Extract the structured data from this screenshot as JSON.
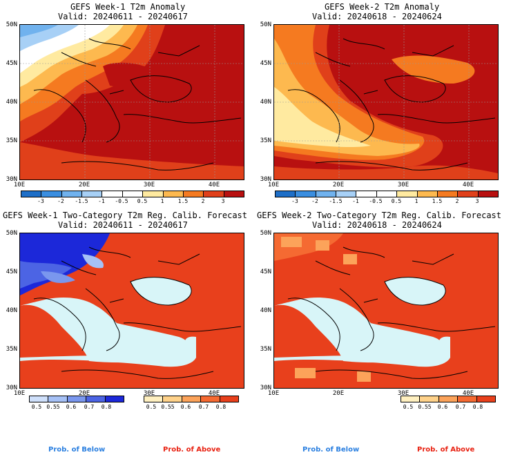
{
  "panels": [
    {
      "title1": "GEFS Week-1 T2m Anomaly",
      "title2": "Valid: 20240611 - 20240617"
    },
    {
      "title1": "GEFS Week-2 T2m Anomaly",
      "title2": "Valid: 20240618 - 20240624"
    },
    {
      "title1": "GEFS Week-1 Two-Category T2m Reg. Calib. Forecast",
      "title2": "Valid: 20240611 - 20240617"
    },
    {
      "title1": "GEFS Week-2 Two-Category T2m Reg. Calib. Forecast",
      "title2": "Valid: 20240618 - 20240624"
    }
  ],
  "lat_labels": [
    "50N",
    "45N",
    "40N",
    "35N",
    "30N"
  ],
  "lon_labels": [
    "10E",
    "20E",
    "30E",
    "40E"
  ],
  "anomaly_colorbar": {
    "labels": [
      "-3",
      "-2",
      "-1.5",
      "-1",
      "-0.5",
      "0.5",
      "1",
      "1.5",
      "2",
      "3"
    ],
    "colors": [
      "#1e6fc8",
      "#3a8ee0",
      "#70b2ee",
      "#a7d0f6",
      "#ffffff",
      "#ffffff",
      "#ffeaa0",
      "#fdb94f",
      "#f57a20",
      "#e0401a",
      "#b81010"
    ]
  },
  "prob_below": {
    "labels": [
      "0.5",
      "0.55",
      "0.6",
      "0.7",
      "0.8"
    ],
    "colors": [
      "#cfe0fb",
      "#a6c1f6",
      "#7a97ee",
      "#4c64e4",
      "#1c28d9"
    ],
    "caption": "Prob. of Below",
    "caption_color": "#2a7fe0"
  },
  "prob_above": {
    "labels": [
      "0.5",
      "0.55",
      "0.6",
      "0.7",
      "0.8"
    ],
    "colors": [
      "#fff0c0",
      "#ffd28a",
      "#fca35a",
      "#f56a32",
      "#e8401c"
    ],
    "caption": "Prob. of Above",
    "caption_color": "#e82010"
  }
}
